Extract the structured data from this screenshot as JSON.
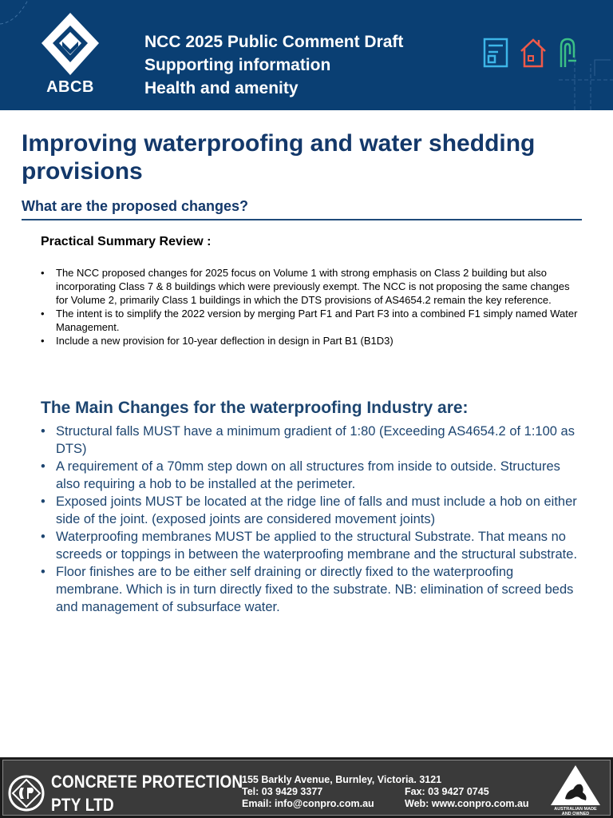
{
  "header": {
    "logo_text": "ABCB",
    "title_lines": [
      "NCC 2025 Public Comment Draft",
      "Supporting information",
      "Health and amenity"
    ],
    "icons": [
      "document-icon",
      "house-icon",
      "tap-icon"
    ],
    "colors": {
      "background": "#0a3f73",
      "icon_1": "#3db6e8",
      "icon_2": "#ef5a4a",
      "icon_3": "#3bbf86"
    }
  },
  "main": {
    "title": "Improving waterproofing and water shedding provisions",
    "subheading": "What are the proposed changes?",
    "summary_title": "Practical Summary Review :",
    "summary_items": [
      "The NCC proposed changes for 2025 focus on Volume 1 with strong emphasis on Class 2 building but also incorporating Class 7 & 8 buildings which were previously exempt. The NCC is not proposing the same changes for Volume 2, primarily Class 1 buildings in which the DTS provisions of AS4654.2 remain the key reference.",
      "The intent is to simplify the 2022 version by merging Part F1 and Part F3 into a combined F1 simply named Water Management.",
      "Include a new provision for 10-year deflection in design in Part B1 (B1D3)"
    ],
    "changes_title": "The Main Changes for the waterproofing Industry are:",
    "changes_items": [
      "Structural falls MUST have a minimum gradient of 1:80 (Exceeding AS4654.2 of 1:100 as DTS)",
      "A requirement of a 70mm step down on all structures from inside to outside. Structures also requiring a hob to be installed at the perimeter.",
      "Exposed joints MUST be located at the ridge line of falls and must include a hob on either side of the joint. (exposed joints are considered movement joints)",
      "Waterproofing membranes MUST be applied to the structural Substrate. That means no screeds or toppings in between the waterproofing membrane and the structural substrate.",
      "Floor finishes are to be either self draining or directly fixed to the waterproofing membrane. Which is in turn directly fixed to the substrate. NB: elimination of screed beds and management of subsurface water."
    ],
    "bullet": "•"
  },
  "footer": {
    "company_line1": "CONCRETE PROTECTION",
    "company_line2": "PTY LTD",
    "address": "155 Barkly Avenue, Burnley, Victoria. 3121",
    "tel": "Tel: 03 9429 3377",
    "fax": "Fax: 03 9427 0745",
    "email": "Email: info@conpro.com.au",
    "web": "Web: www.conpro.com.au",
    "badge_line1": "AUSTRALIAN MADE",
    "badge_line2": "AND OWNED"
  }
}
